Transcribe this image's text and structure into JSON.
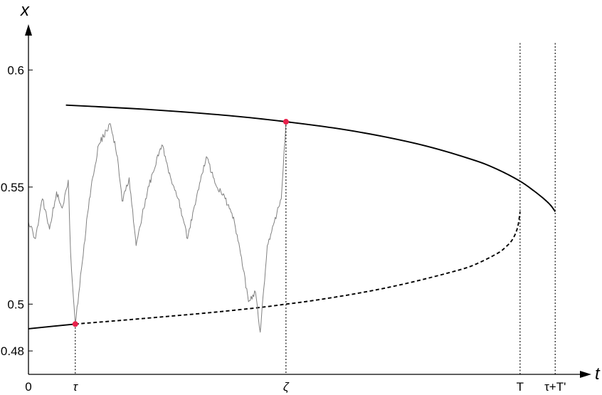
{
  "chart_data": {
    "type": "line",
    "xlabel": "t",
    "ylabel": "x",
    "xlim": [
      0,
      11.8
    ],
    "ylim": [
      0.47,
      0.615
    ],
    "yticks": [
      {
        "value": 0.6,
        "label": "0.6"
      },
      {
        "value": 0.55,
        "label": "0.55"
      },
      {
        "value": 0.5,
        "label": "0.5"
      },
      {
        "value": 0.48,
        "label": "0.48"
      }
    ],
    "xticks": [
      {
        "value": 0,
        "label": "0",
        "italic": false
      },
      {
        "value": 1,
        "label": "τ",
        "italic": true
      },
      {
        "value": 5.5,
        "label": "ζ",
        "italic": true
      },
      {
        "value": 10.5,
        "label": "T",
        "italic": false
      },
      {
        "value": 11.25,
        "label": "τ+T'",
        "italic": false
      }
    ],
    "series": [
      {
        "style": "solid",
        "color": "#000000",
        "x": [
          0.8,
          1.5,
          2.5,
          3.5,
          4.5,
          5.5,
          6.5,
          7.5,
          8.5,
          9.5,
          10.0,
          10.5,
          10.8,
          11.0,
          11.15,
          11.25
        ],
        "y": [
          0.585,
          0.5843,
          0.5832,
          0.5818,
          0.5801,
          0.5779,
          0.5753,
          0.5719,
          0.5675,
          0.5616,
          0.5577,
          0.5525,
          0.5483,
          0.5451,
          0.5423,
          0.5395
        ]
      },
      {
        "style": "dashed",
        "color": "#000000",
        "x": [
          1.0,
          2.0,
          3.0,
          4.0,
          5.0,
          5.5,
          6.0,
          7.0,
          8.0,
          9.0,
          9.5,
          10.0,
          10.2,
          10.35,
          10.45,
          10.5
        ],
        "y": [
          0.4915,
          0.4931,
          0.4948,
          0.4966,
          0.4987,
          0.5,
          0.5013,
          0.5045,
          0.5085,
          0.5135,
          0.5166,
          0.5215,
          0.5245,
          0.528,
          0.533,
          0.5395
        ]
      },
      {
        "style": "solid-boundary",
        "color": "#000000",
        "x": [
          0.0,
          1.0
        ],
        "y": [
          0.4895,
          0.4915
        ]
      },
      {
        "style": "path",
        "color": "#808080",
        "seed": 23,
        "x": [
          0.0,
          0.15,
          0.3,
          0.45,
          0.6,
          0.72,
          0.85,
          0.9,
          1.0,
          1.15,
          1.3,
          1.5,
          1.75,
          1.9,
          2.0,
          2.15,
          2.3,
          2.5,
          2.65,
          2.85,
          3.05,
          3.2,
          3.4,
          3.6,
          3.8,
          4.0,
          4.2,
          4.4,
          4.55,
          4.7,
          4.85,
          4.95,
          5.1,
          5.25,
          5.4,
          5.5
        ],
        "y": [
          0.535,
          0.528,
          0.545,
          0.532,
          0.548,
          0.541,
          0.553,
          0.522,
          0.4915,
          0.518,
          0.545,
          0.568,
          0.577,
          0.563,
          0.544,
          0.554,
          0.525,
          0.545,
          0.556,
          0.568,
          0.553,
          0.545,
          0.528,
          0.547,
          0.563,
          0.551,
          0.545,
          0.535,
          0.52,
          0.501,
          0.505,
          0.488,
          0.525,
          0.535,
          0.545,
          0.5779
        ]
      }
    ],
    "points": [
      {
        "x": 1.0,
        "y": 0.4915,
        "color": "#e8224c"
      },
      {
        "x": 5.5,
        "y": 0.5779,
        "color": "#e8224c"
      }
    ],
    "vlines": [
      {
        "x": 1.0,
        "from": 0.4915
      },
      {
        "x": 5.5,
        "from": 0.5779
      },
      {
        "x": 10.5,
        "from": 0.6115
      },
      {
        "x": 11.25,
        "from": 0.6115
      }
    ]
  }
}
